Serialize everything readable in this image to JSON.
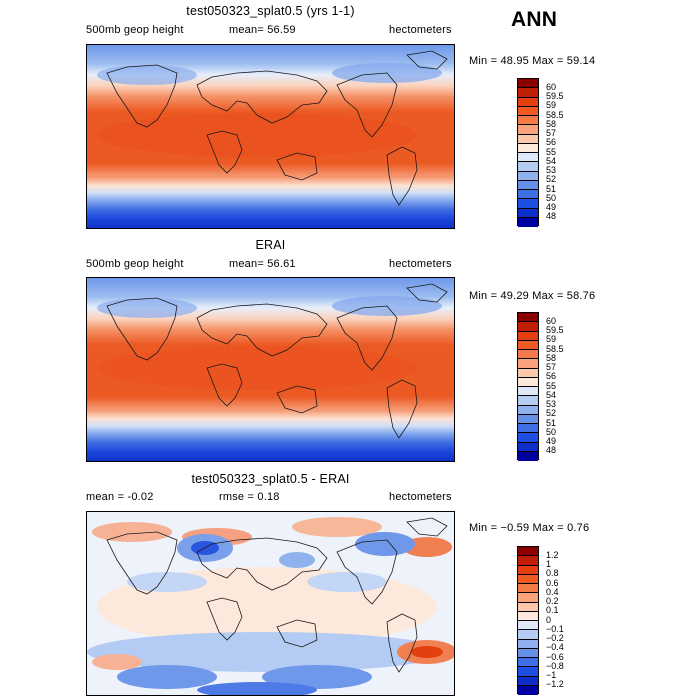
{
  "season": "ANN",
  "panels": [
    {
      "title": "test050323_splat0.5 (yrs 1-1)",
      "left_label": "500mb geop height",
      "mean_text": "mean=  56.59",
      "units": "hectometers",
      "minmax": "Min =  48.95 Max =  59.14",
      "colorbar_labels": [
        "60",
        "59.5",
        "59",
        "58.5",
        "58",
        "57",
        "56",
        "55",
        "54",
        "53",
        "52",
        "51",
        "50",
        "49",
        "48"
      ],
      "colorbar_colors": [
        "#8b0000",
        "#c01e05",
        "#e3400f",
        "#ef5b22",
        "#f47a47",
        "#f9a27c",
        "#fcc7ac",
        "#fde9dc",
        "#dde8f8",
        "#b6cdf3",
        "#8fb1ee",
        "#6591ea",
        "#3f6fe5",
        "#1f4fe0",
        "#0b2fc8",
        "#0000a0"
      ]
    },
    {
      "title": "ERAI",
      "left_label": "500mb geop height",
      "mean_text": "mean=  56.61",
      "units": "hectometers",
      "minmax": "Min =  49.29 Max =  58.76",
      "colorbar_labels": [
        "60",
        "59.5",
        "59",
        "58.5",
        "58",
        "57",
        "56",
        "55",
        "54",
        "53",
        "52",
        "51",
        "50",
        "49",
        "48"
      ],
      "colorbar_colors": [
        "#8b0000",
        "#c01e05",
        "#e3400f",
        "#ef5b22",
        "#f47a47",
        "#f9a27c",
        "#fcc7ac",
        "#fde9dc",
        "#dde8f8",
        "#b6cdf3",
        "#8fb1ee",
        "#6591ea",
        "#3f6fe5",
        "#1f4fe0",
        "#0b2fc8",
        "#0000a0"
      ]
    },
    {
      "title": "test050323_splat0.5 - ERAI",
      "left_label": "mean =   -0.02",
      "mean_text": "rmse =    0.18",
      "units": "hectometers",
      "minmax": "Min =  −0.59 Max =    0.76",
      "colorbar_labels": [
        "1.2",
        "1",
        "0.8",
        "0.6",
        "0.4",
        "0.2",
        "0.1",
        "0",
        "−0.1",
        "−0.2",
        "−0.4",
        "−0.6",
        "−0.8",
        "−1",
        "−1.2"
      ],
      "colorbar_colors": [
        "#8b0000",
        "#c01e05",
        "#e3400f",
        "#ef5b22",
        "#f47a47",
        "#f9a27c",
        "#fcc7ac",
        "#fde9dc",
        "#dde8f8",
        "#b6cdf3",
        "#8fb1ee",
        "#6591ea",
        "#3f6fe5",
        "#1f4fe0",
        "#0b2fc8",
        "#0000a0"
      ]
    }
  ]
}
